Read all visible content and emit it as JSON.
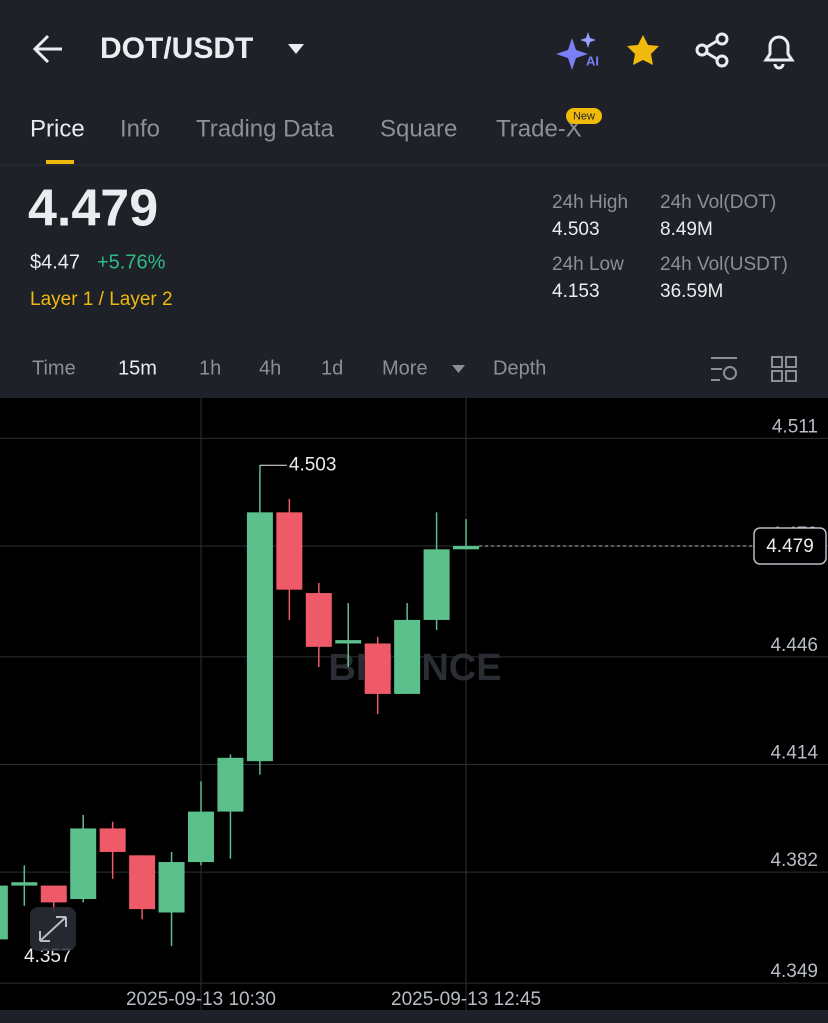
{
  "header": {
    "pair": "DOT/USDT",
    "ai_badge": "AI"
  },
  "tabs": [
    "Price",
    "Info",
    "Trading Data",
    "Square",
    "Trade-X"
  ],
  "tab_badge": "New",
  "ticker": {
    "price": "4.479",
    "usd_price": "$4.47",
    "change": "+5.76%",
    "tags": "Layer 1 / Layer 2",
    "stats": [
      {
        "label": "24h High",
        "value": "4.503"
      },
      {
        "label": "24h Vol(DOT)",
        "value": "8.49M"
      },
      {
        "label": "24h Low",
        "value": "4.153"
      },
      {
        "label": "24h Vol(USDT)",
        "value": "36.59M"
      }
    ]
  },
  "intervals": [
    "Time",
    "15m",
    "1h",
    "4h",
    "1d",
    "More",
    "Depth"
  ],
  "chart_data": {
    "type": "candlestick",
    "watermark": "BINANCE",
    "categories": [
      null,
      null,
      null,
      null,
      null,
      null,
      null,
      "2025-09-13 10:30",
      null,
      null,
      null,
      null,
      null,
      null,
      null,
      null,
      "2025-09-13 12:45"
    ],
    "open": [
      4.362,
      4.378,
      4.378,
      4.374,
      4.395,
      4.387,
      4.37,
      4.385,
      4.4,
      4.415,
      4.489,
      4.465,
      4.45,
      4.45,
      4.435,
      4.457,
      4.478
    ],
    "high": [
      4.379,
      4.384,
      4.378,
      4.399,
      4.397,
      4.387,
      4.388,
      4.409,
      4.417,
      4.503,
      4.493,
      4.468,
      4.462,
      4.452,
      4.462,
      4.489,
      4.487
    ],
    "low": [
      4.357,
      4.372,
      4.37,
      4.373,
      4.38,
      4.368,
      4.36,
      4.384,
      4.386,
      4.411,
      4.457,
      4.443,
      4.443,
      4.429,
      4.435,
      4.454,
      4.478
    ],
    "close": [
      4.378,
      4.379,
      4.373,
      4.395,
      4.388,
      4.371,
      4.385,
      4.4,
      4.416,
      4.489,
      4.466,
      4.449,
      4.451,
      4.435,
      4.457,
      4.478,
      4.479
    ],
    "up_color": "#5cc08c",
    "down_color": "#ee5a67",
    "ylim": [
      4.341,
      4.523
    ],
    "yticks": [
      4.511,
      4.479,
      4.446,
      4.414,
      4.382,
      4.349
    ],
    "grid": true,
    "current_price": 4.479,
    "high_label": 4.503,
    "low_label": 4.357
  }
}
